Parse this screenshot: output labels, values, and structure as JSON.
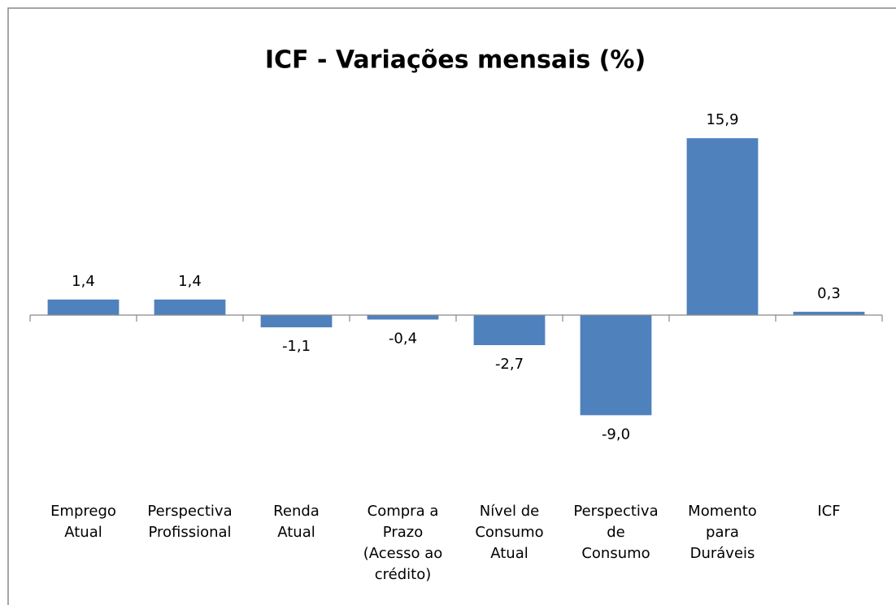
{
  "chart_data": {
    "type": "bar",
    "title": "ICF - Variações mensais (%)",
    "categories": [
      "Emprego\nAtual",
      "Perspectiva\nProfissional",
      "Renda\nAtual",
      "Compra a\nPrazo\n(Acesso ao\ncrédito)",
      "Nível de\nConsumo\nAtual",
      "Perspectiva\nde\nConsumo",
      "Momento\npara\nDuráveis",
      "ICF"
    ],
    "values": [
      1.4,
      1.4,
      -1.1,
      -0.4,
      -2.7,
      -9.0,
      15.9,
      0.3
    ],
    "value_labels": [
      "1,4",
      "1,4",
      "-1,1",
      "-0,4",
      "-2,7",
      "-9,0",
      "15,9",
      "0,3"
    ],
    "color": "#4f81bd",
    "ylim": [
      -10,
      20
    ]
  }
}
